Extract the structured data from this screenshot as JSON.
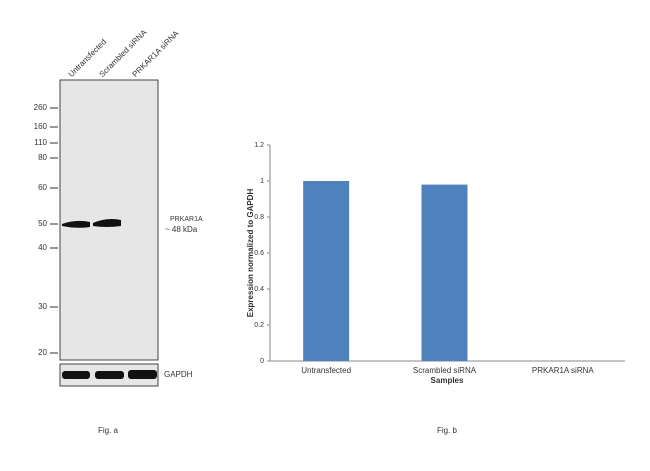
{
  "blot": {
    "lanes": [
      "Untransfected",
      "Scrambled siRNA",
      "PRKAR1A siRNA"
    ],
    "markers": [
      260,
      160,
      110,
      80,
      60,
      50,
      40,
      30,
      20
    ],
    "band_label": "PRKAR1A",
    "band_size": "~ 48 kDa",
    "loading_label": "GAPDH",
    "caption": "Fig. a"
  },
  "chart_data": {
    "type": "bar",
    "categories": [
      "Untransfected",
      "Scrambled siRNA",
      "PRKAR1A siRNA"
    ],
    "values": [
      1,
      0.98,
      0
    ],
    "color": "#4f81bd",
    "ylim": [
      0,
      1.2
    ],
    "yticks": [
      0,
      0.2,
      0.4,
      0.6,
      0.8,
      1,
      1.2
    ],
    "y_label": "Expression normalized to GAPDH",
    "x_label": "Samples",
    "caption": "Fig. b"
  }
}
